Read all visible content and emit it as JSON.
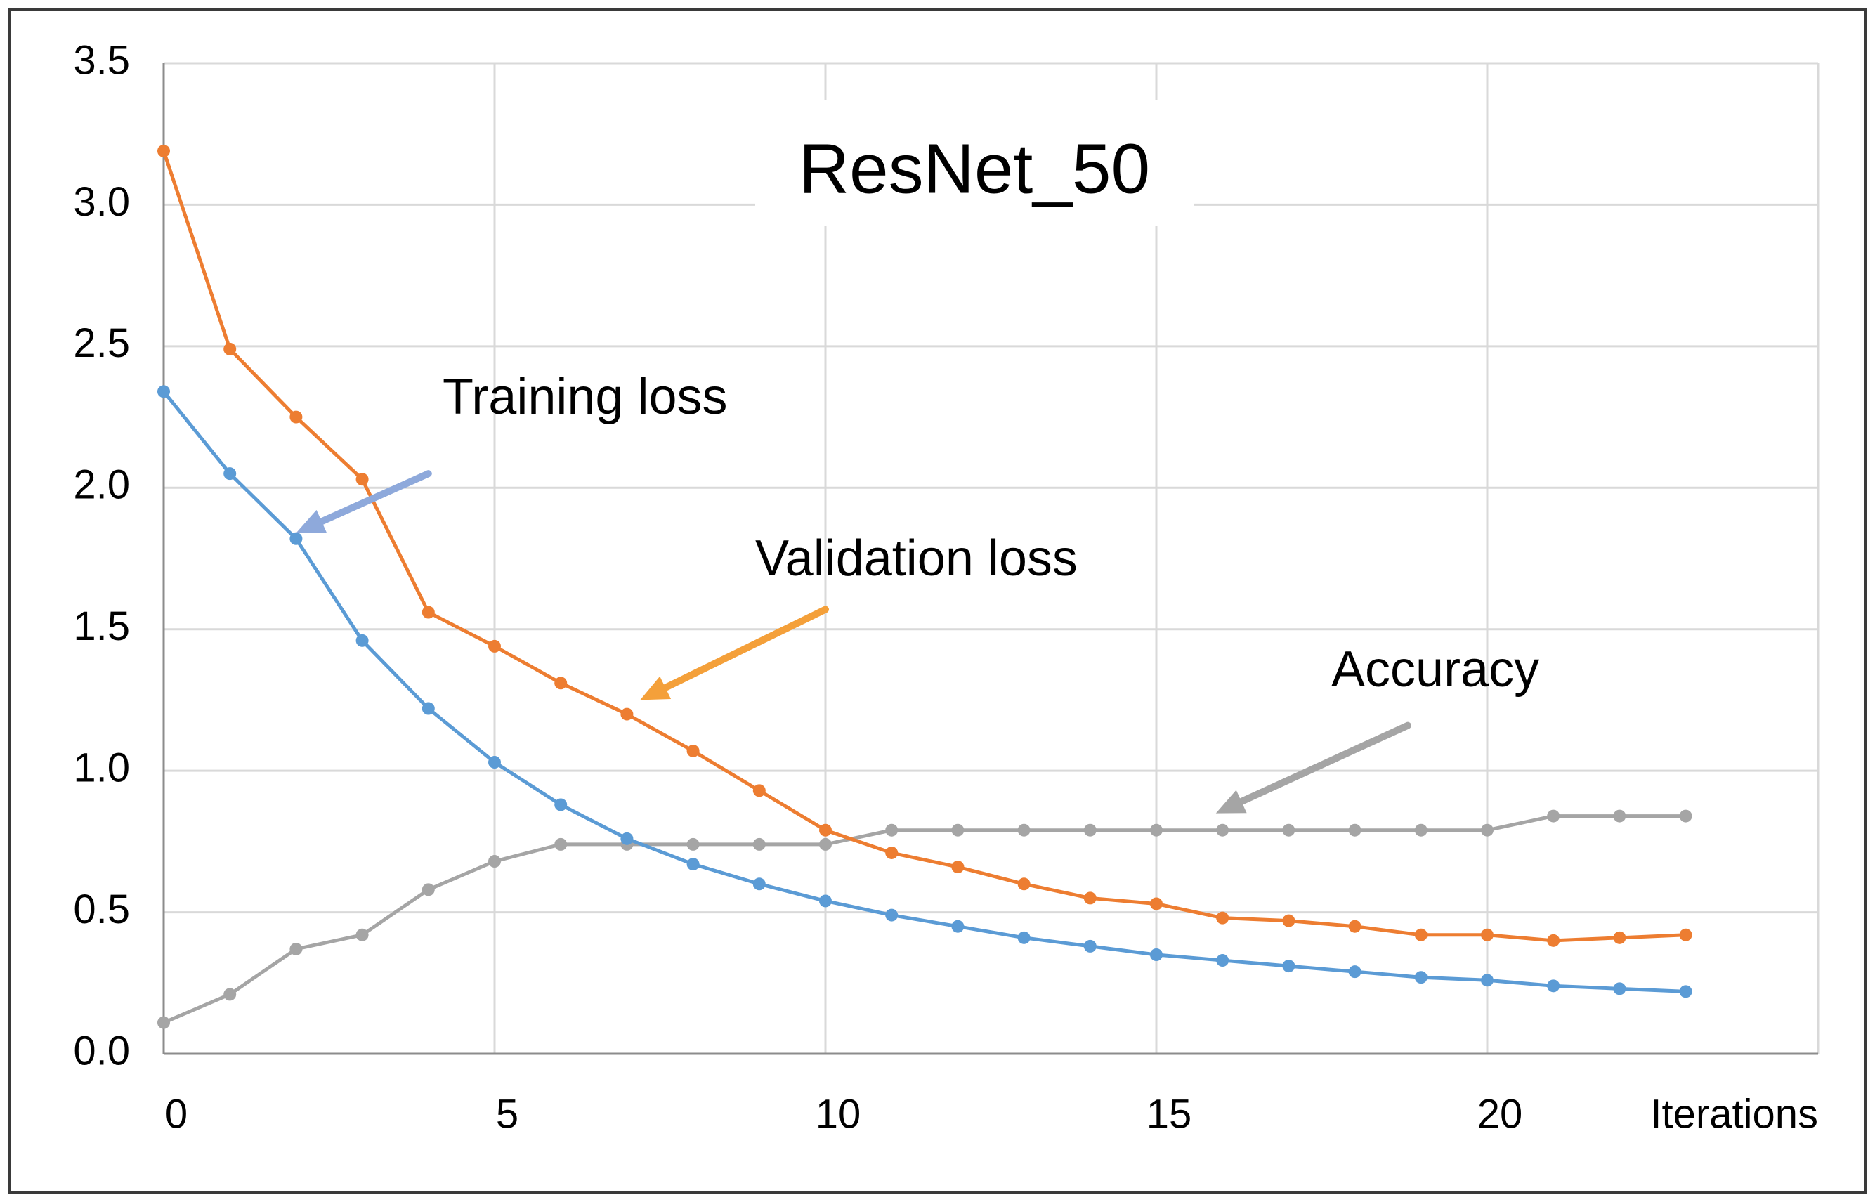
{
  "chart_data": {
    "type": "line",
    "title": "ResNet_50",
    "xlabel": "Iterations",
    "ylabel": "",
    "xlim": [
      0,
      25
    ],
    "ylim": [
      0,
      3.5
    ],
    "xticks": [
      0,
      5,
      10,
      15,
      20
    ],
    "xtick_labels": [
      "0",
      "5",
      "10",
      "15",
      "20"
    ],
    "yticks": [
      0,
      0.5,
      1,
      1.5,
      2,
      2.5,
      3,
      3.5
    ],
    "ytick_labels": [
      "0.0",
      "0.5",
      "1.0",
      "1.5",
      "2.0",
      "2.5",
      "3.0",
      "3.5"
    ],
    "grid": true,
    "legend": "none",
    "x": [
      0,
      1,
      2,
      3,
      4,
      5,
      6,
      7,
      8,
      9,
      10,
      11,
      12,
      13,
      14,
      15,
      16,
      17,
      18,
      19,
      20,
      21,
      22,
      23
    ],
    "series": [
      {
        "name": "Training loss",
        "color": "#5B9BD5",
        "values": [
          2.34,
          2.05,
          1.82,
          1.46,
          1.22,
          1.03,
          0.88,
          0.76,
          0.67,
          0.6,
          0.54,
          0.49,
          0.45,
          0.41,
          0.38,
          0.35,
          0.33,
          0.31,
          0.29,
          0.27,
          0.26,
          0.24,
          0.23,
          0.22
        ],
        "annotation": {
          "text": "Training loss",
          "x": 4,
          "y": 2.05,
          "target_x": 2,
          "target_y": 1.84
        }
      },
      {
        "name": "Validation loss",
        "color": "#ED7D31",
        "values": [
          3.19,
          2.49,
          2.25,
          2.03,
          1.56,
          1.44,
          1.31,
          1.2,
          1.07,
          0.93,
          0.79,
          0.71,
          0.66,
          0.6,
          0.55,
          0.53,
          0.48,
          0.47,
          0.45,
          0.42,
          0.42,
          0.4,
          0.41,
          0.42
        ],
        "annotation": {
          "text": "Validation loss",
          "x": 10,
          "y": 1.57,
          "target_x": 7.2,
          "target_y": 1.25
        }
      },
      {
        "name": "Accuracy",
        "color": "#A5A5A5",
        "values": [
          0.11,
          0.21,
          0.37,
          0.42,
          0.58,
          0.68,
          0.74,
          0.74,
          0.74,
          0.74,
          0.74,
          0.79,
          0.79,
          0.79,
          0.79,
          0.79,
          0.79,
          0.79,
          0.79,
          0.79,
          0.79,
          0.84,
          0.84,
          0.84
        ],
        "annotation": {
          "text": "Accuracy",
          "x": 18.8,
          "y": 1.16,
          "target_x": 15.9,
          "target_y": 0.85
        }
      }
    ]
  }
}
